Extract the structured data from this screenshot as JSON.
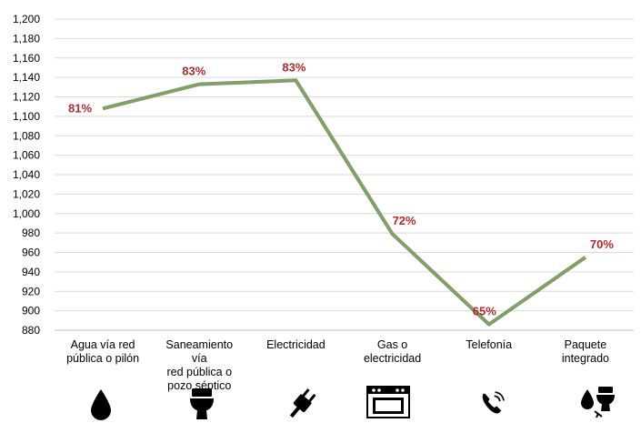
{
  "chart_data": {
    "type": "line",
    "categories": [
      [
        "Agua vía red",
        "pública o pilón"
      ],
      [
        "Saneamiento",
        "vía",
        "red pública o",
        "pozo séptico"
      ],
      [
        "Electricidad"
      ],
      [
        "Gas o",
        "electricidad"
      ],
      [
        "Telefonía"
      ],
      [
        "Paquete",
        "integrado"
      ]
    ],
    "values": [
      1108,
      1133,
      1137,
      979,
      886,
      955
    ],
    "data_labels": [
      "81%",
      "83%",
      "83%",
      "72%",
      "65%",
      "70%"
    ],
    "icons": [
      "water-drop-icon",
      "toilet-icon",
      "plug-icon",
      "stove-icon",
      "telephone-icon",
      "bundle-icon"
    ],
    "ylim": [
      880,
      1200
    ],
    "ytick_step": 20,
    "ytick_labels": [
      "880",
      "900",
      "920",
      "940",
      "960",
      "980",
      "1,000",
      "1,020",
      "1,040",
      "1,060",
      "1,080",
      "1,100",
      "1,120",
      "1,140",
      "1,160",
      "1,180",
      "1,200"
    ],
    "grid": true,
    "line_color": "#7aab4f",
    "line_outline_color": "#8a8a8a",
    "label_color": "#b02a2e"
  }
}
